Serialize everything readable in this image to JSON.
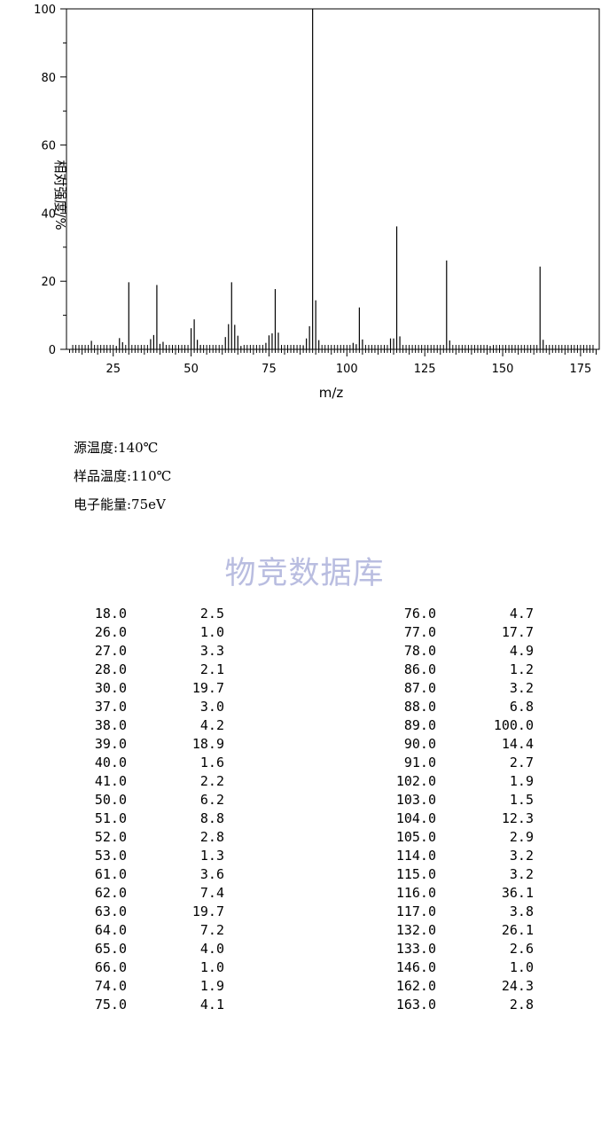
{
  "chart_data": {
    "type": "bar",
    "xlabel": "m/z",
    "ylabel": "相对强度/%",
    "xlim": [
      10,
      181
    ],
    "ylim": [
      0,
      100
    ],
    "xticks": [
      25,
      50,
      75,
      100,
      125,
      150,
      175
    ],
    "yticks": [
      0,
      20,
      40,
      60,
      80,
      100
    ],
    "grid": false,
    "peaks_mz": [
      18,
      26,
      27,
      28,
      30,
      37,
      38,
      39,
      40,
      41,
      50,
      51,
      52,
      53,
      61,
      62,
      63,
      64,
      65,
      66,
      74,
      75,
      76,
      77,
      78,
      86,
      87,
      88,
      89,
      90,
      91,
      102,
      103,
      104,
      105,
      114,
      115,
      116,
      117,
      132,
      133,
      146,
      162,
      163
    ],
    "peaks_intensity": [
      2.5,
      1.0,
      3.3,
      2.1,
      19.7,
      3.0,
      4.2,
      18.9,
      1.6,
      2.2,
      6.2,
      8.8,
      2.8,
      1.3,
      3.6,
      7.4,
      19.7,
      7.2,
      4.0,
      1.0,
      1.9,
      4.1,
      4.7,
      17.7,
      4.9,
      1.2,
      3.2,
      6.8,
      100.0,
      14.4,
      2.7,
      1.9,
      1.5,
      12.3,
      2.9,
      3.2,
      3.2,
      36.1,
      3.8,
      26.1,
      2.6,
      1.0,
      24.3,
      2.8
    ]
  },
  "conditions": {
    "source_temp": "源温度:140℃",
    "sample_temp": "样品温度:110℃",
    "electron_energy": "电子能量:75eV"
  },
  "watermark": "物竞数据库",
  "table": {
    "left": [
      [
        "18.0",
        "2.5"
      ],
      [
        "26.0",
        "1.0"
      ],
      [
        "27.0",
        "3.3"
      ],
      [
        "28.0",
        "2.1"
      ],
      [
        "30.0",
        "19.7"
      ],
      [
        "37.0",
        "3.0"
      ],
      [
        "38.0",
        "4.2"
      ],
      [
        "39.0",
        "18.9"
      ],
      [
        "40.0",
        "1.6"
      ],
      [
        "41.0",
        "2.2"
      ],
      [
        "50.0",
        "6.2"
      ],
      [
        "51.0",
        "8.8"
      ],
      [
        "52.0",
        "2.8"
      ],
      [
        "53.0",
        "1.3"
      ],
      [
        "61.0",
        "3.6"
      ],
      [
        "62.0",
        "7.4"
      ],
      [
        "63.0",
        "19.7"
      ],
      [
        "64.0",
        "7.2"
      ],
      [
        "65.0",
        "4.0"
      ],
      [
        "66.0",
        "1.0"
      ],
      [
        "74.0",
        "1.9"
      ],
      [
        "75.0",
        "4.1"
      ]
    ],
    "right": [
      [
        "76.0",
        "4.7"
      ],
      [
        "77.0",
        "17.7"
      ],
      [
        "78.0",
        "4.9"
      ],
      [
        "86.0",
        "1.2"
      ],
      [
        "87.0",
        "3.2"
      ],
      [
        "88.0",
        "6.8"
      ],
      [
        "89.0",
        "100.0"
      ],
      [
        "90.0",
        "14.4"
      ],
      [
        "91.0",
        "2.7"
      ],
      [
        "102.0",
        "1.9"
      ],
      [
        "103.0",
        "1.5"
      ],
      [
        "104.0",
        "12.3"
      ],
      [
        "105.0",
        "2.9"
      ],
      [
        "114.0",
        "3.2"
      ],
      [
        "115.0",
        "3.2"
      ],
      [
        "116.0",
        "36.1"
      ],
      [
        "117.0",
        "3.8"
      ],
      [
        "132.0",
        "26.1"
      ],
      [
        "133.0",
        "2.6"
      ],
      [
        "146.0",
        "1.0"
      ],
      [
        "162.0",
        "24.3"
      ],
      [
        "163.0",
        "2.8"
      ]
    ]
  }
}
